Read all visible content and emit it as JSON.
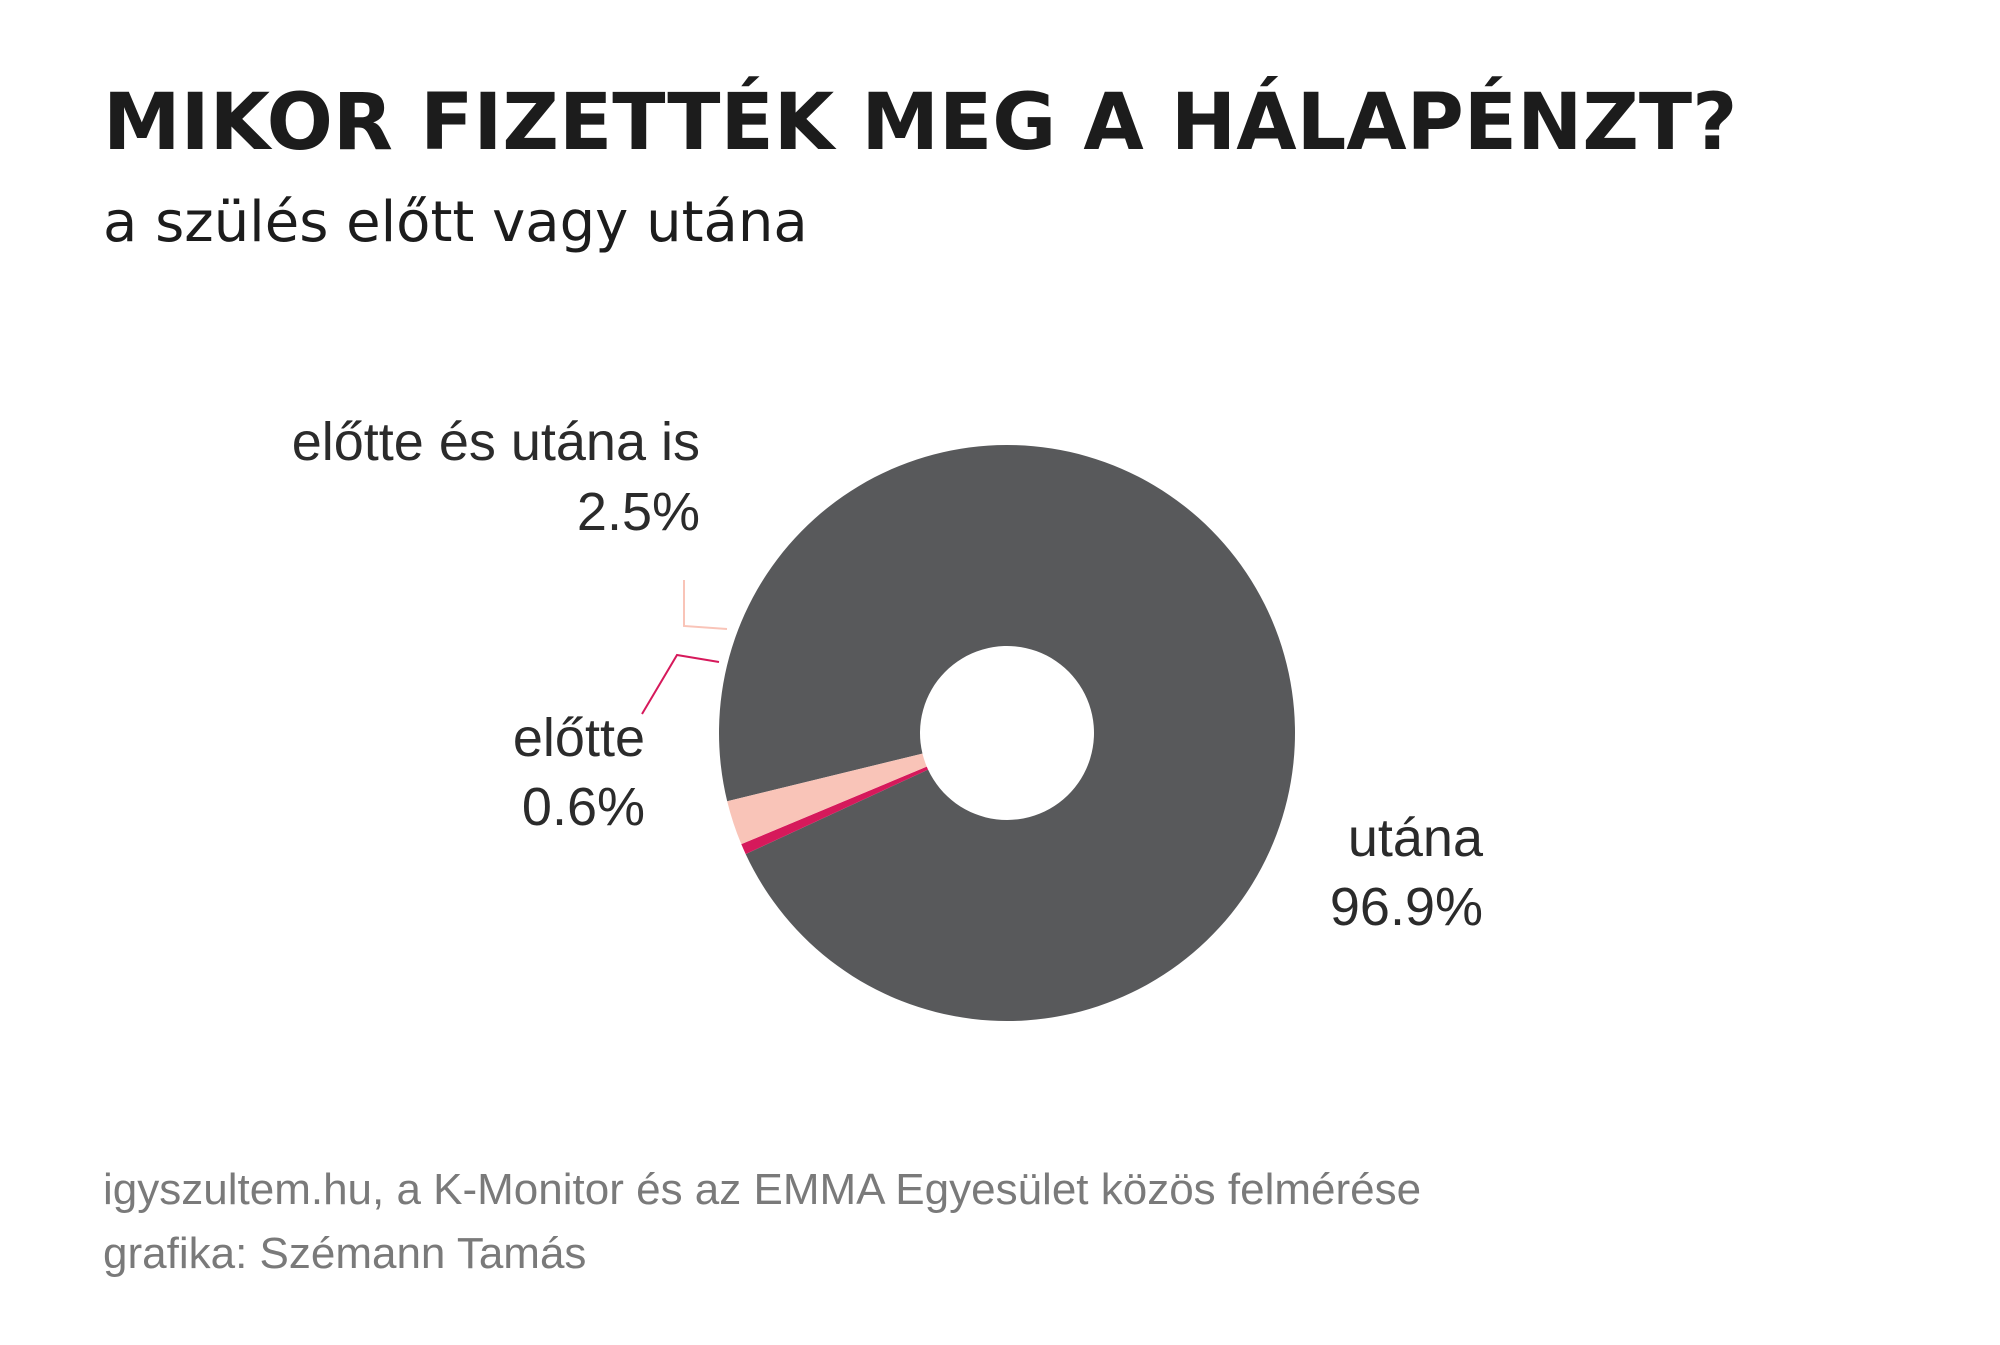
{
  "title": "MIKOR FIZETTÉK MEG A HÁLAPÉNZT?",
  "subtitle": "a szülés előtt vagy utána",
  "footer": {
    "source": "igyszultem.hu, a K-Monitor és az EMMA Egyesület közös felmérése",
    "credit": "grafika: Szémann Tamás"
  },
  "colors": {
    "utana": "#58595b",
    "elotte_es_utana_is": "#f9c4b8",
    "elotte": "#d6195b",
    "background": "#ffffff"
  },
  "chart_data": {
    "type": "pie",
    "subtype": "donut",
    "title": "MIKOR FIZETTÉK MEG A HÁLAPÉNZT?",
    "subtitle": "a szülés előtt vagy utána",
    "unit": "%",
    "slices": [
      {
        "label": "utána",
        "value": 96.9,
        "value_label": "96.9%",
        "color": "#58595b"
      },
      {
        "label": "előtte",
        "value": 0.6,
        "value_label": "0.6%",
        "color": "#d6195b"
      },
      {
        "label": "előtte és utána is",
        "value": 2.5,
        "value_label": "2.5%",
        "color": "#f9c4b8"
      }
    ]
  }
}
